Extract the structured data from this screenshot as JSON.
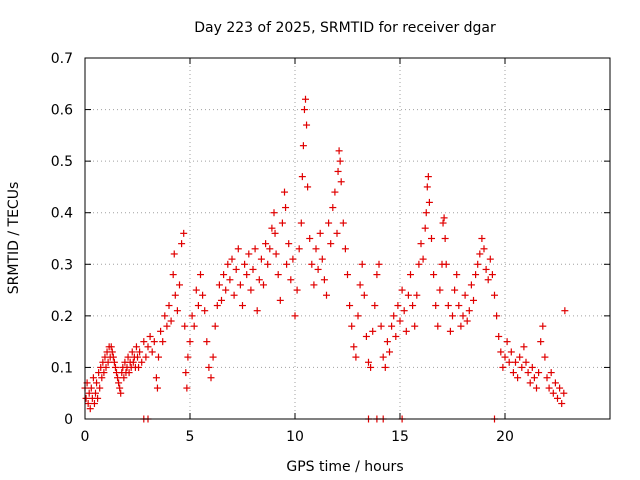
{
  "chart_data": {
    "type": "scatter",
    "title": "Day 223 of 2025, SRMTID for receiver dgar",
    "xlabel": "GPS time / hours",
    "ylabel": "SRMTID / TECUs",
    "xlim": [
      0,
      25
    ],
    "ylim": [
      0,
      0.7
    ],
    "x_ticks": [
      0,
      5,
      10,
      15,
      20
    ],
    "x_tick_labels": [
      "0",
      "5",
      "10",
      "15",
      "20"
    ],
    "y_ticks": [
      0,
      0.1,
      0.2,
      0.3,
      0.4,
      0.5,
      0.6,
      0.7
    ],
    "y_tick_labels": [
      "0",
      "0.1",
      "0.2",
      "0.3",
      "0.4",
      "0.5",
      "0.6",
      "0.7"
    ],
    "grid": true,
    "marker": "+",
    "color": "#e00000",
    "series": [
      {
        "name": "SRMTID",
        "points": [
          [
            0.0,
            0.06
          ],
          [
            0.05,
            0.04
          ],
          [
            0.1,
            0.07
          ],
          [
            0.15,
            0.03
          ],
          [
            0.2,
            0.05
          ],
          [
            0.25,
            0.02
          ],
          [
            0.3,
            0.06
          ],
          [
            0.35,
            0.04
          ],
          [
            0.4,
            0.08
          ],
          [
            0.45,
            0.03
          ],
          [
            0.5,
            0.05
          ],
          [
            0.55,
            0.07
          ],
          [
            0.6,
            0.04
          ],
          [
            0.65,
            0.09
          ],
          [
            0.7,
            0.06
          ],
          [
            0.75,
            0.1
          ],
          [
            0.8,
            0.08
          ],
          [
            0.85,
            0.11
          ],
          [
            0.9,
            0.09
          ],
          [
            0.95,
            0.12
          ],
          [
            1.0,
            0.1
          ],
          [
            1.05,
            0.13
          ],
          [
            1.1,
            0.11
          ],
          [
            1.15,
            0.14
          ],
          [
            1.2,
            0.12
          ],
          [
            1.25,
            0.14
          ],
          [
            1.3,
            0.13
          ],
          [
            1.35,
            0.12
          ],
          [
            1.4,
            0.11
          ],
          [
            1.45,
            0.1
          ],
          [
            1.5,
            0.09
          ],
          [
            1.55,
            0.08
          ],
          [
            1.6,
            0.07
          ],
          [
            1.65,
            0.06
          ],
          [
            1.7,
            0.05
          ],
          [
            1.75,
            0.09
          ],
          [
            1.8,
            0.1
          ],
          [
            1.85,
            0.08
          ],
          [
            1.9,
            0.11
          ],
          [
            1.95,
            0.09
          ],
          [
            2.0,
            0.1
          ],
          [
            2.05,
            0.12
          ],
          [
            2.1,
            0.09
          ],
          [
            2.15,
            0.11
          ],
          [
            2.2,
            0.1
          ],
          [
            2.25,
            0.13
          ],
          [
            2.3,
            0.11
          ],
          [
            2.35,
            0.12
          ],
          [
            2.4,
            0.1
          ],
          [
            2.45,
            0.14
          ],
          [
            2.5,
            0.12
          ],
          [
            2.55,
            0.1
          ],
          [
            2.6,
            0.13
          ],
          [
            2.7,
            0.11
          ],
          [
            2.8,
            0.15
          ],
          [
            2.9,
            0.12
          ],
          [
            3.0,
            0.14
          ],
          [
            3.1,
            0.16
          ],
          [
            3.2,
            0.13
          ],
          [
            3.3,
            0.15
          ],
          [
            3.4,
            0.08
          ],
          [
            3.45,
            0.06
          ],
          [
            3.5,
            0.12
          ],
          [
            3.6,
            0.17
          ],
          [
            3.7,
            0.15
          ],
          [
            3.8,
            0.2
          ],
          [
            3.9,
            0.18
          ],
          [
            4.0,
            0.22
          ],
          [
            4.1,
            0.19
          ],
          [
            4.2,
            0.28
          ],
          [
            4.25,
            0.32
          ],
          [
            4.3,
            0.24
          ],
          [
            4.4,
            0.21
          ],
          [
            4.5,
            0.26
          ],
          [
            4.6,
            0.34
          ],
          [
            4.7,
            0.36
          ],
          [
            4.75,
            0.18
          ],
          [
            4.8,
            0.09
          ],
          [
            4.85,
            0.06
          ],
          [
            4.9,
            0.12
          ],
          [
            5.0,
            0.15
          ],
          [
            5.1,
            0.2
          ],
          [
            5.2,
            0.18
          ],
          [
            5.3,
            0.25
          ],
          [
            5.4,
            0.22
          ],
          [
            5.5,
            0.28
          ],
          [
            5.6,
            0.24
          ],
          [
            5.7,
            0.21
          ],
          [
            5.8,
            0.15
          ],
          [
            5.9,
            0.1
          ],
          [
            6.0,
            0.08
          ],
          [
            6.1,
            0.12
          ],
          [
            6.2,
            0.18
          ],
          [
            6.3,
            0.22
          ],
          [
            6.4,
            0.26
          ],
          [
            6.5,
            0.23
          ],
          [
            6.6,
            0.28
          ],
          [
            6.7,
            0.25
          ],
          [
            6.8,
            0.3
          ],
          [
            6.9,
            0.27
          ],
          [
            7.0,
            0.31
          ],
          [
            7.1,
            0.24
          ],
          [
            7.2,
            0.29
          ],
          [
            7.3,
            0.33
          ],
          [
            7.4,
            0.26
          ],
          [
            7.5,
            0.22
          ],
          [
            7.6,
            0.3
          ],
          [
            7.7,
            0.28
          ],
          [
            7.8,
            0.32
          ],
          [
            7.9,
            0.25
          ],
          [
            8.0,
            0.29
          ],
          [
            8.1,
            0.33
          ],
          [
            8.2,
            0.21
          ],
          [
            8.3,
            0.27
          ],
          [
            8.4,
            0.31
          ],
          [
            8.5,
            0.26
          ],
          [
            8.6,
            0.34
          ],
          [
            8.7,
            0.3
          ],
          [
            8.8,
            0.33
          ],
          [
            8.9,
            0.37
          ],
          [
            9.0,
            0.4
          ],
          [
            9.05,
            0.36
          ],
          [
            9.1,
            0.32
          ],
          [
            9.2,
            0.28
          ],
          [
            9.3,
            0.23
          ],
          [
            9.4,
            0.38
          ],
          [
            9.5,
            0.44
          ],
          [
            9.55,
            0.41
          ],
          [
            9.6,
            0.3
          ],
          [
            9.7,
            0.34
          ],
          [
            9.8,
            0.27
          ],
          [
            9.9,
            0.31
          ],
          [
            10.0,
            0.2
          ],
          [
            10.1,
            0.25
          ],
          [
            10.2,
            0.33
          ],
          [
            10.3,
            0.38
          ],
          [
            10.35,
            0.47
          ],
          [
            10.4,
            0.53
          ],
          [
            10.45,
            0.6
          ],
          [
            10.5,
            0.62
          ],
          [
            10.55,
            0.57
          ],
          [
            10.6,
            0.45
          ],
          [
            10.7,
            0.35
          ],
          [
            10.8,
            0.3
          ],
          [
            10.9,
            0.26
          ],
          [
            11.0,
            0.33
          ],
          [
            11.1,
            0.29
          ],
          [
            11.2,
            0.36
          ],
          [
            11.3,
            0.31
          ],
          [
            11.4,
            0.27
          ],
          [
            11.5,
            0.24
          ],
          [
            11.6,
            0.38
          ],
          [
            11.7,
            0.34
          ],
          [
            11.8,
            0.41
          ],
          [
            11.9,
            0.44
          ],
          [
            12.0,
            0.36
          ],
          [
            12.05,
            0.48
          ],
          [
            12.1,
            0.52
          ],
          [
            12.15,
            0.5
          ],
          [
            12.2,
            0.46
          ],
          [
            12.3,
            0.38
          ],
          [
            12.4,
            0.33
          ],
          [
            12.5,
            0.28
          ],
          [
            12.6,
            0.22
          ],
          [
            12.7,
            0.18
          ],
          [
            12.8,
            0.14
          ],
          [
            12.9,
            0.12
          ],
          [
            13.0,
            0.2
          ],
          [
            13.1,
            0.26
          ],
          [
            13.2,
            0.3
          ],
          [
            13.3,
            0.24
          ],
          [
            13.4,
            0.16
          ],
          [
            13.5,
            0.11
          ],
          [
            13.6,
            0.1
          ],
          [
            13.7,
            0.17
          ],
          [
            13.8,
            0.22
          ],
          [
            13.9,
            0.28
          ],
          [
            14.0,
            0.3
          ],
          [
            14.1,
            0.18
          ],
          [
            14.2,
            0.12
          ],
          [
            14.3,
            0.1
          ],
          [
            14.4,
            0.15
          ],
          [
            14.5,
            0.13
          ],
          [
            14.6,
            0.18
          ],
          [
            14.7,
            0.2
          ],
          [
            14.8,
            0.16
          ],
          [
            14.9,
            0.22
          ],
          [
            15.0,
            0.19
          ],
          [
            15.1,
            0.25
          ],
          [
            15.2,
            0.21
          ],
          [
            15.3,
            0.17
          ],
          [
            15.4,
            0.24
          ],
          [
            15.5,
            0.28
          ],
          [
            15.6,
            0.22
          ],
          [
            15.7,
            0.18
          ],
          [
            15.8,
            0.24
          ],
          [
            15.9,
            0.3
          ],
          [
            16.0,
            0.34
          ],
          [
            16.1,
            0.31
          ],
          [
            16.2,
            0.37
          ],
          [
            16.25,
            0.4
          ],
          [
            16.3,
            0.45
          ],
          [
            16.35,
            0.47
          ],
          [
            16.4,
            0.42
          ],
          [
            16.5,
            0.35
          ],
          [
            16.6,
            0.28
          ],
          [
            16.7,
            0.22
          ],
          [
            16.8,
            0.18
          ],
          [
            16.9,
            0.25
          ],
          [
            17.0,
            0.3
          ],
          [
            17.05,
            0.38
          ],
          [
            17.1,
            0.39
          ],
          [
            17.15,
            0.35
          ],
          [
            17.2,
            0.3
          ],
          [
            17.3,
            0.22
          ],
          [
            17.4,
            0.17
          ],
          [
            17.5,
            0.2
          ],
          [
            17.6,
            0.25
          ],
          [
            17.7,
            0.28
          ],
          [
            17.8,
            0.22
          ],
          [
            17.9,
            0.18
          ],
          [
            18.0,
            0.2
          ],
          [
            18.1,
            0.24
          ],
          [
            18.2,
            0.19
          ],
          [
            18.3,
            0.21
          ],
          [
            18.4,
            0.26
          ],
          [
            18.5,
            0.23
          ],
          [
            18.6,
            0.28
          ],
          [
            18.7,
            0.3
          ],
          [
            18.8,
            0.32
          ],
          [
            18.9,
            0.35
          ],
          [
            19.0,
            0.33
          ],
          [
            19.1,
            0.29
          ],
          [
            19.2,
            0.27
          ],
          [
            19.3,
            0.31
          ],
          [
            19.4,
            0.28
          ],
          [
            19.5,
            0.24
          ],
          [
            19.6,
            0.2
          ],
          [
            19.7,
            0.16
          ],
          [
            19.8,
            0.13
          ],
          [
            19.9,
            0.1
          ],
          [
            20.0,
            0.12
          ],
          [
            20.1,
            0.15
          ],
          [
            20.2,
            0.11
          ],
          [
            20.3,
            0.13
          ],
          [
            20.4,
            0.09
          ],
          [
            20.5,
            0.11
          ],
          [
            20.6,
            0.08
          ],
          [
            20.7,
            0.12
          ],
          [
            20.8,
            0.1
          ],
          [
            20.9,
            0.14
          ],
          [
            21.0,
            0.11
          ],
          [
            21.1,
            0.09
          ],
          [
            21.2,
            0.07
          ],
          [
            21.3,
            0.1
          ],
          [
            21.4,
            0.08
          ],
          [
            21.5,
            0.06
          ],
          [
            21.6,
            0.09
          ],
          [
            21.7,
            0.15
          ],
          [
            21.8,
            0.18
          ],
          [
            21.9,
            0.12
          ],
          [
            22.0,
            0.08
          ],
          [
            22.1,
            0.06
          ],
          [
            22.2,
            0.09
          ],
          [
            22.3,
            0.05
          ],
          [
            22.4,
            0.07
          ],
          [
            22.5,
            0.04
          ],
          [
            22.6,
            0.06
          ],
          [
            22.7,
            0.03
          ],
          [
            22.8,
            0.05
          ],
          [
            22.85,
            0.21
          ],
          [
            2.8,
            0.0
          ],
          [
            3.0,
            0.0
          ],
          [
            13.5,
            0.0
          ],
          [
            13.9,
            0.0
          ],
          [
            14.2,
            0.0
          ],
          [
            15.1,
            0.0
          ],
          [
            19.5,
            0.0
          ]
        ]
      }
    ]
  }
}
